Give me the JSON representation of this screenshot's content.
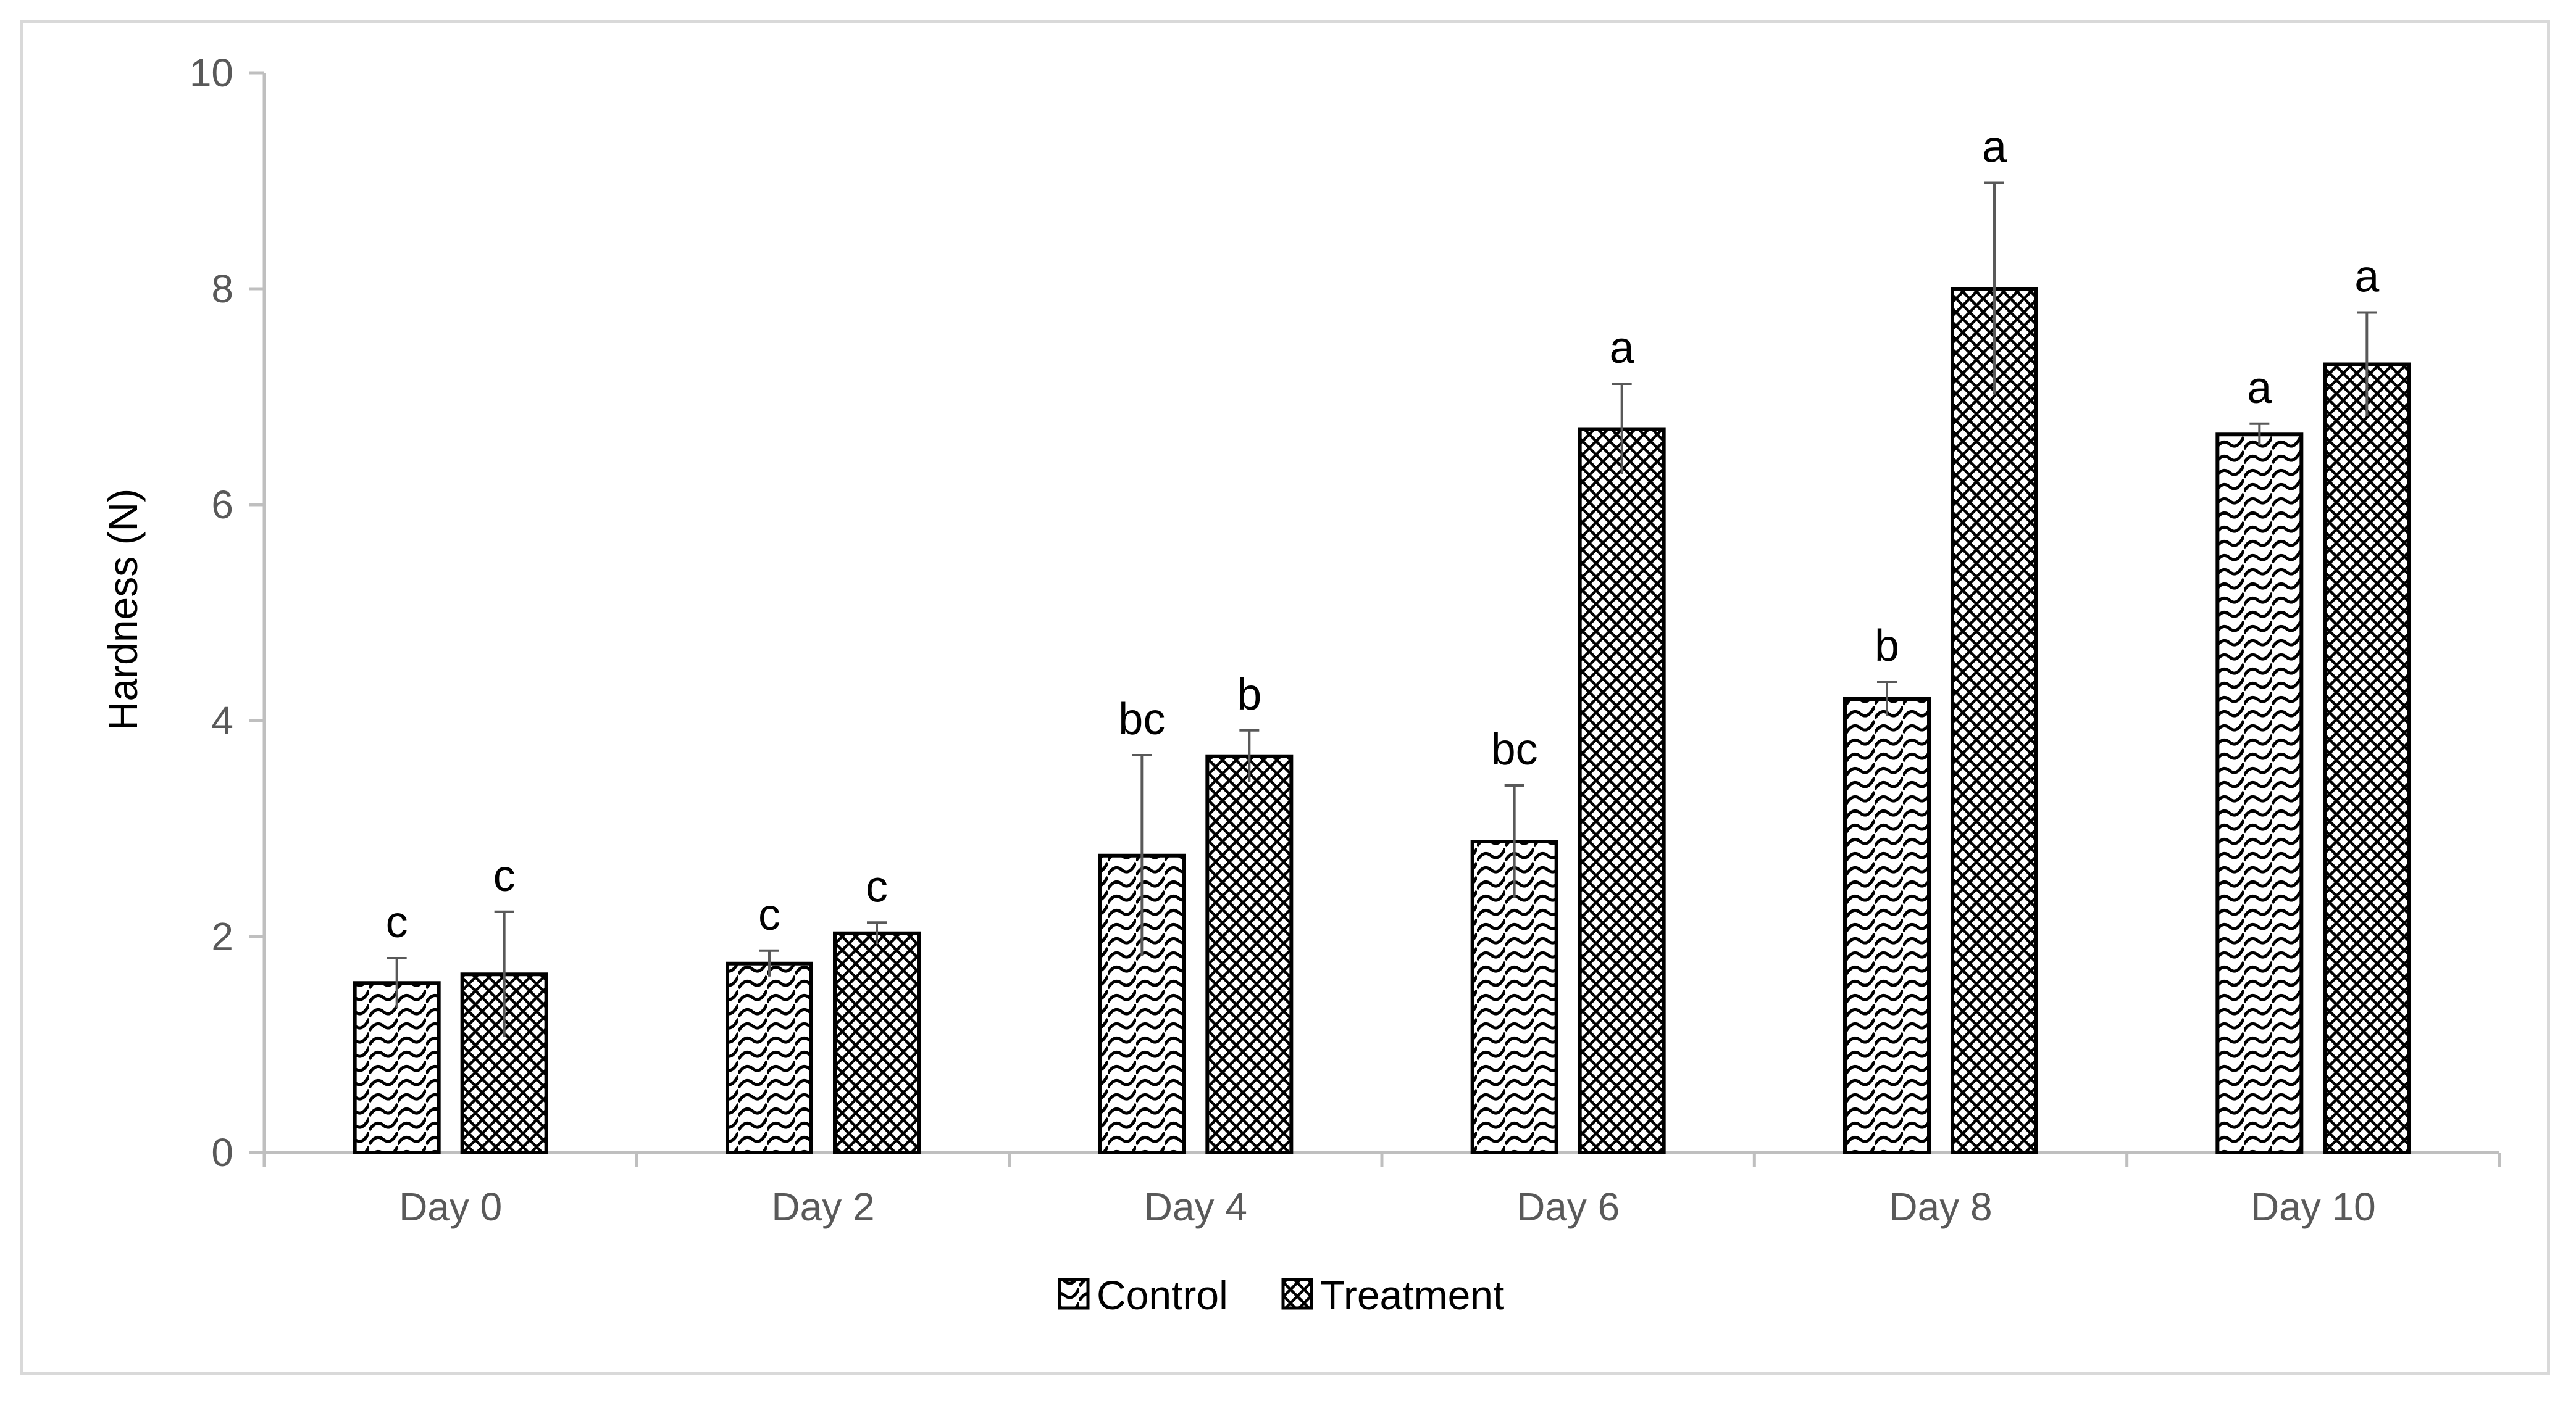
{
  "chart_data": {
    "type": "bar",
    "title": "",
    "xlabel": "",
    "ylabel": "Hardness (N)",
    "ylim": [
      0,
      10
    ],
    "yticks": [
      0,
      2,
      4,
      6,
      8,
      10
    ],
    "grid": false,
    "legend_position": "bottom",
    "categories": [
      "Day 0",
      "Day 2",
      "Day 4",
      "Day 6",
      "Day 8",
      "Day 10"
    ],
    "series": [
      {
        "name": "Control",
        "pattern": "wave-hatch",
        "values": [
          1.57,
          1.75,
          2.75,
          2.88,
          4.2,
          6.65
        ],
        "errors": [
          0.23,
          0.12,
          0.93,
          0.52,
          0.16,
          0.1
        ],
        "labels": [
          "c",
          "c",
          "bc",
          "bc",
          "b",
          "a"
        ]
      },
      {
        "name": "Treatment",
        "pattern": "crosshatch",
        "values": [
          1.65,
          2.03,
          3.67,
          6.7,
          8.0,
          7.3
        ],
        "errors": [
          0.58,
          0.1,
          0.24,
          0.42,
          0.98,
          0.48
        ],
        "labels": [
          "c",
          "c",
          "b",
          "a",
          "a",
          "a"
        ]
      }
    ],
    "colors": {
      "axis": "#bfbfbf",
      "bar_stroke": "#000000",
      "tick_text": "#595959",
      "error_bar": "#595959"
    }
  }
}
